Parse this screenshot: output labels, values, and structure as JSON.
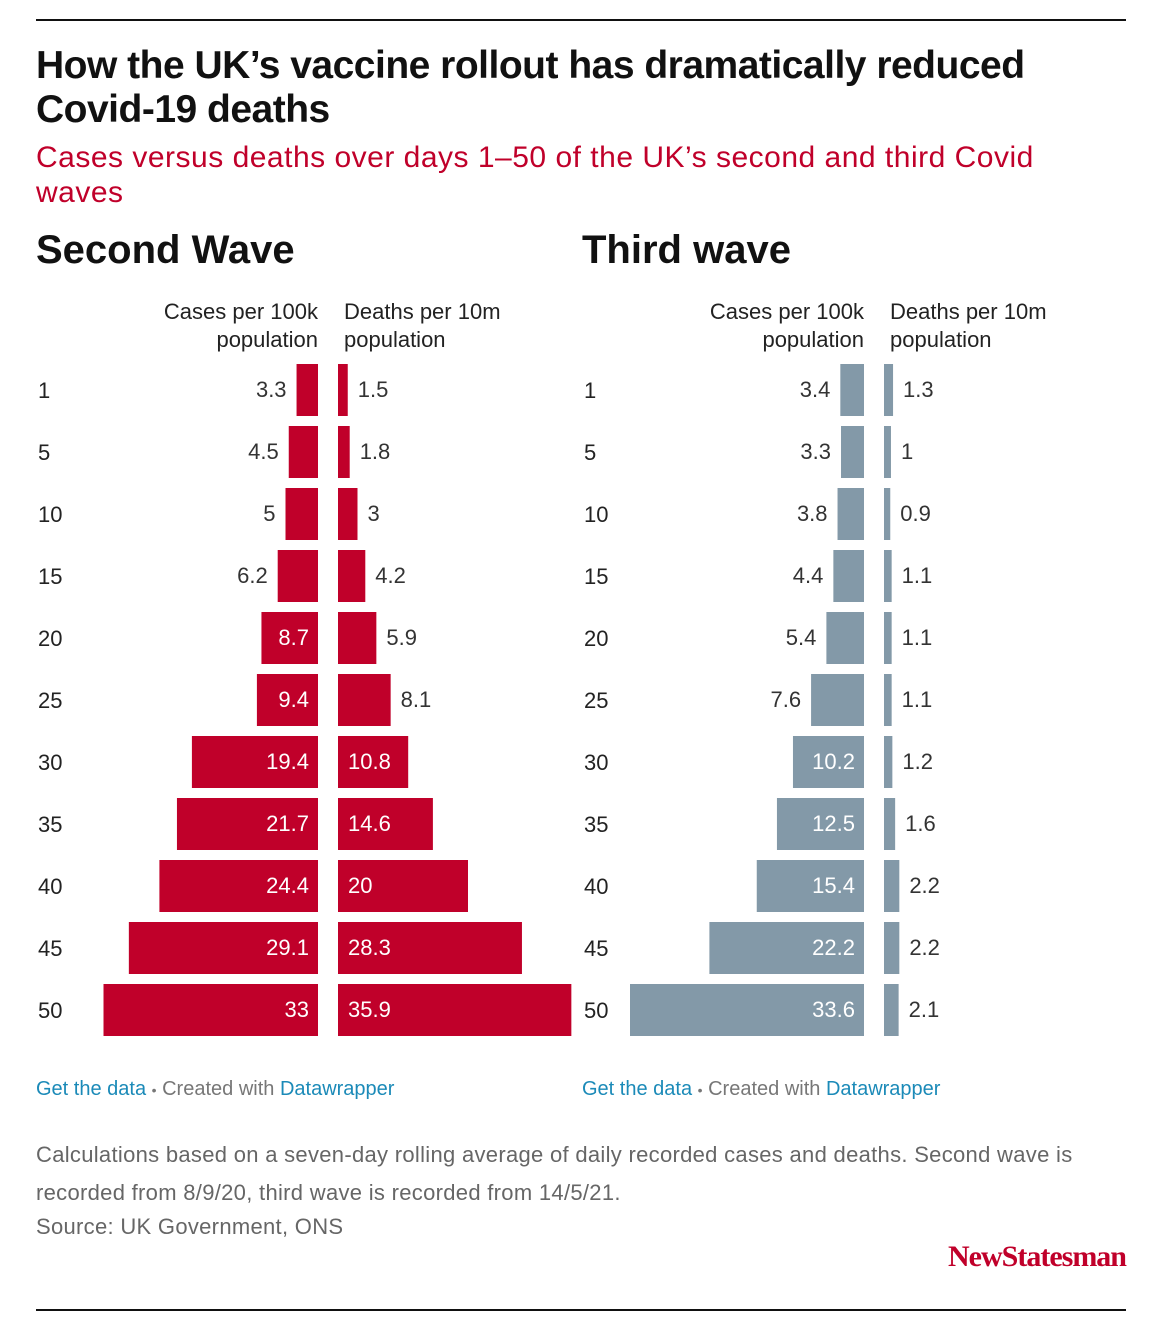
{
  "title": "How the UK’s vaccine rollout has dramatically reduced Covid-19 deaths",
  "subtitle": "Cases versus deaths over days 1–50 of the UK’s second and third Covid waves",
  "notes": "Calculations based on a seven-day rolling average of daily recorded cases and deaths. Second wave is recorded from 8/9/20, third wave is recorded from 14/5/21.",
  "source": "Source: UK Government, ONS",
  "brand": "NewStatesman",
  "chart_data": [
    {
      "type": "bar",
      "title": "Second Wave",
      "categories": [
        "1",
        "5",
        "10",
        "15",
        "20",
        "25",
        "30",
        "35",
        "40",
        "45",
        "50"
      ],
      "series": [
        {
          "name": "Cases per 100k population",
          "color": "#c0002a",
          "values": [
            3.3,
            4.5,
            5,
            6.2,
            8.7,
            9.4,
            19.4,
            21.7,
            24.4,
            29.1,
            33
          ]
        },
        {
          "name": "Deaths per 10m population",
          "color": "#c0002a",
          "values": [
            1.5,
            1.8,
            3,
            4.2,
            5.9,
            8.1,
            10.8,
            14.6,
            20,
            28.3,
            35.9
          ]
        }
      ],
      "xlim": [
        0,
        36
      ],
      "footer": {
        "link": "Get the data",
        "separator": "•",
        "credit": "Created with",
        "tool": "Datawrapper"
      }
    },
    {
      "type": "bar",
      "title": "Third wave",
      "categories": [
        "1",
        "5",
        "10",
        "15",
        "20",
        "25",
        "30",
        "35",
        "40",
        "45",
        "50"
      ],
      "series": [
        {
          "name": "Cases per 100k population",
          "color": "#8399a8",
          "values": [
            3.4,
            3.3,
            3.8,
            4.4,
            5.4,
            7.6,
            10.2,
            12.5,
            15.4,
            22.2,
            33.6
          ]
        },
        {
          "name": "Deaths per 10m population",
          "color": "#8399a8",
          "values": [
            1.3,
            1,
            0.9,
            1.1,
            1.1,
            1.1,
            1.2,
            1.6,
            2.2,
            2.2,
            2.1
          ]
        }
      ],
      "xlim": [
        0,
        33.6
      ],
      "footer": {
        "link": "Get the data",
        "separator": "•",
        "credit": "Created with",
        "tool": "Datawrapper"
      }
    }
  ]
}
